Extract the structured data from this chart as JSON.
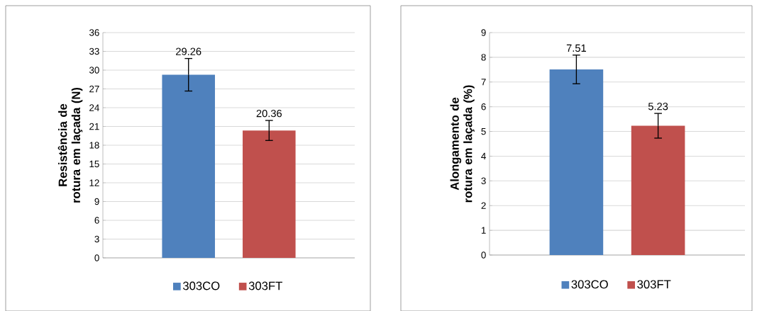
{
  "chart_data": [
    {
      "type": "bar",
      "ylabel": "Resistência de rotura em laçada (N)",
      "categories": [
        null
      ],
      "series": [
        {
          "name": "303CO",
          "color": "#4f81bd",
          "values": [
            29.26
          ],
          "errors": [
            2.6
          ]
        },
        {
          "name": "303FT",
          "color": "#c0504d",
          "values": [
            20.36
          ],
          "errors": [
            1.6
          ]
        }
      ],
      "ylim": [
        0,
        36
      ],
      "yticks": [
        0,
        3,
        6,
        9,
        12,
        15,
        18,
        21,
        24,
        27,
        30,
        33,
        36
      ],
      "grid": "y",
      "legend": "bottom",
      "data_labels": true
    },
    {
      "type": "bar",
      "ylabel": "Alongamento de rotura em laçada (%)",
      "categories": [
        null
      ],
      "series": [
        {
          "name": "303CO",
          "color": "#4f81bd",
          "values": [
            7.51
          ],
          "errors": [
            0.58
          ]
        },
        {
          "name": "303FT",
          "color": "#c0504d",
          "values": [
            5.23
          ],
          "errors": [
            0.5
          ]
        }
      ],
      "ylim": [
        0,
        9
      ],
      "yticks": [
        0,
        1,
        2,
        3,
        4,
        5,
        6,
        7,
        8,
        9
      ],
      "grid": "y",
      "legend": "bottom",
      "data_labels": true
    }
  ]
}
